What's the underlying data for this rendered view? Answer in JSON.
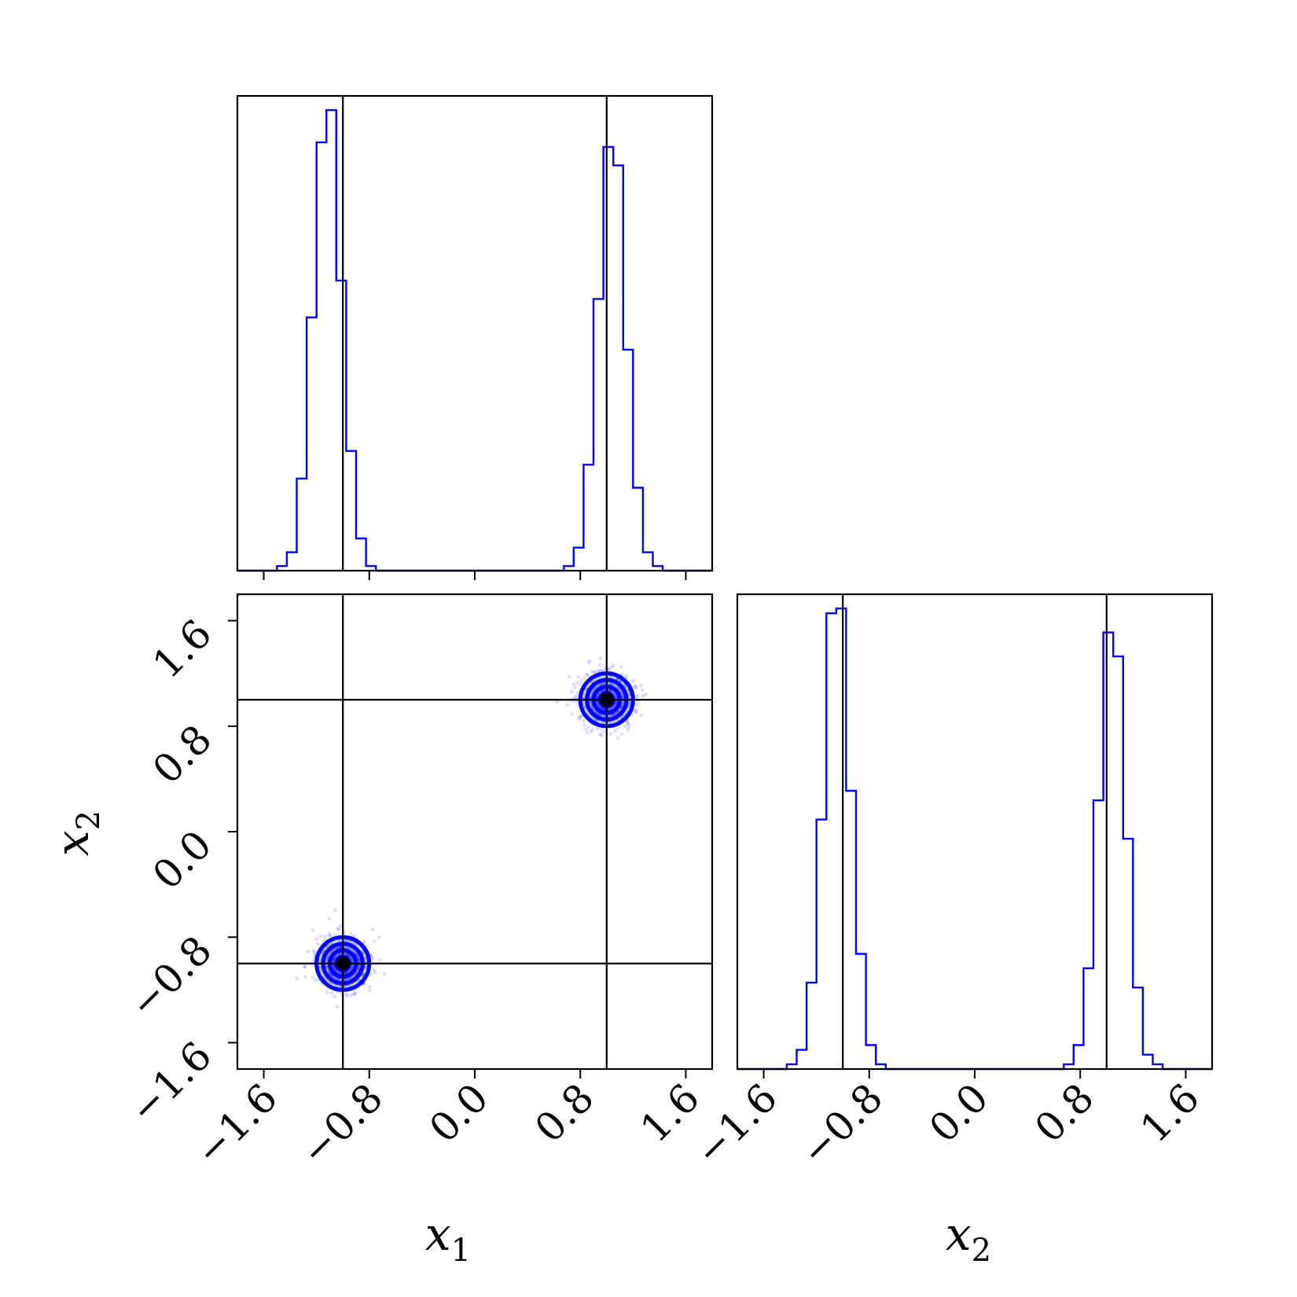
{
  "chart_data": {
    "type": "corner",
    "colors": {
      "samples": "#0000ff",
      "truth": "#000000"
    },
    "truths": {
      "x1": [
        -1.0,
        1.0
      ],
      "x2": [
        -1.0,
        1.0
      ]
    },
    "axis_labels": {
      "x1": {
        "base": "x",
        "sub": "1"
      },
      "x2": {
        "base": "x",
        "sub": "2"
      }
    },
    "ticks": [
      -1.6,
      -0.8,
      0.0,
      0.8,
      1.6
    ],
    "tick_labels": [
      "−1.6",
      "−0.8",
      "0.0",
      "0.8",
      "1.6"
    ],
    "range": [
      -1.8,
      1.8
    ],
    "hist_x1": {
      "bin_edges": [
        -1.8,
        -1.725,
        -1.65,
        -1.575,
        -1.5,
        -1.425,
        -1.35,
        -1.275,
        -1.2,
        -1.125,
        -1.05,
        -0.975,
        -0.9,
        -0.825,
        -0.75,
        -0.675,
        -0.6,
        -0.525,
        -0.45,
        -0.375,
        -0.3,
        -0.225,
        -0.15,
        -0.075,
        0.0,
        0.075,
        0.15,
        0.225,
        0.3,
        0.375,
        0.45,
        0.525,
        0.6,
        0.675,
        0.75,
        0.825,
        0.9,
        0.975,
        1.05,
        1.125,
        1.2,
        1.275,
        1.35,
        1.425,
        1.5,
        1.575,
        1.65,
        1.725,
        1.8
      ],
      "counts": [
        0,
        0,
        0,
        0,
        1,
        4,
        20,
        55,
        93,
        100,
        63,
        26,
        7,
        1,
        0,
        0,
        0,
        0,
        0,
        0,
        0,
        0,
        0,
        0,
        0,
        0,
        0,
        0,
        0,
        0,
        0,
        0,
        0,
        1,
        5,
        23,
        59,
        92,
        88,
        48,
        18,
        4,
        1,
        0,
        0,
        0,
        0,
        0
      ]
    },
    "hist_x2": {
      "bin_edges": [
        -1.8,
        -1.725,
        -1.65,
        -1.575,
        -1.5,
        -1.425,
        -1.35,
        -1.275,
        -1.2,
        -1.125,
        -1.05,
        -0.975,
        -0.9,
        -0.825,
        -0.75,
        -0.675,
        -0.6,
        -0.525,
        -0.45,
        -0.375,
        -0.3,
        -0.225,
        -0.15,
        -0.075,
        0.0,
        0.075,
        0.15,
        0.225,
        0.3,
        0.375,
        0.45,
        0.525,
        0.6,
        0.675,
        0.75,
        0.825,
        0.9,
        0.975,
        1.05,
        1.125,
        1.2,
        1.275,
        1.35,
        1.425,
        1.5,
        1.575,
        1.65,
        1.725,
        1.8
      ],
      "counts": [
        0,
        0,
        0,
        0,
        0,
        1,
        4,
        18,
        52,
        95,
        96,
        58,
        24,
        5,
        1,
        0,
        0,
        0,
        0,
        0,
        0,
        0,
        0,
        0,
        0,
        0,
        0,
        0,
        0,
        0,
        0,
        0,
        0,
        1,
        5,
        21,
        56,
        91,
        86,
        48,
        17,
        3,
        1,
        0,
        0,
        0,
        0,
        0
      ]
    },
    "scatter_2d": {
      "modes": [
        {
          "center": [
            -1.0,
            -1.0
          ],
          "sigma": 0.1
        },
        {
          "center": [
            1.0,
            1.0
          ],
          "sigma": 0.1
        }
      ],
      "contour_levels_sigma": [
        0.5,
        1.0,
        1.5,
        2.0
      ]
    }
  }
}
